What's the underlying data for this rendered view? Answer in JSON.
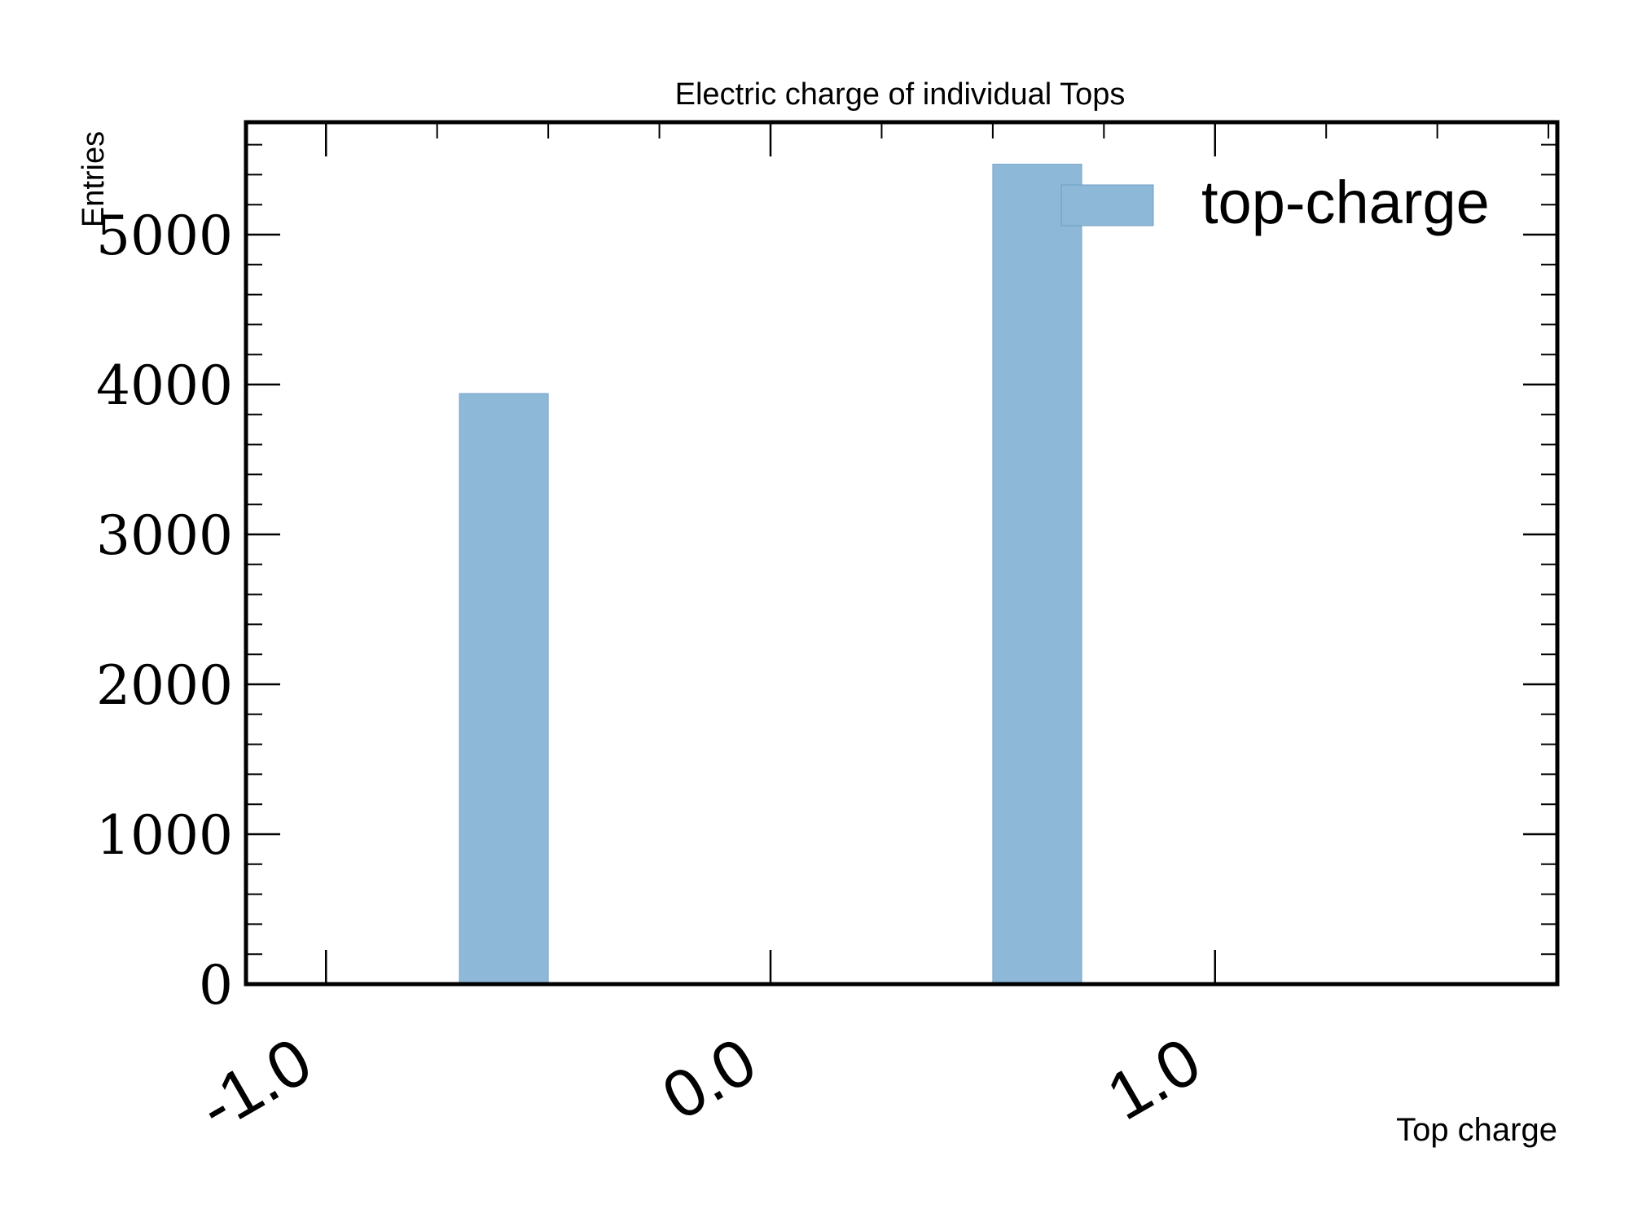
{
  "chart_data": {
    "type": "bar",
    "title": "Electric charge of individual Tops",
    "xlabel": "Top charge",
    "ylabel": "Entries",
    "xlim": [
      -1.18,
      1.77
    ],
    "ylim": [
      0,
      5750
    ],
    "xticks": [
      -1.0,
      0.0,
      1.0
    ],
    "xtick_labels": [
      "-1.0",
      "0.0",
      "1.0"
    ],
    "yticks": [
      0,
      1000,
      2000,
      3000,
      4000,
      5000
    ],
    "ytick_labels": [
      "0",
      "1000",
      "2000",
      "3000",
      "4000",
      "5000"
    ],
    "series": [
      {
        "name": "top-charge",
        "color": "#8db8d8",
        "bins": [
          {
            "x0": -0.7,
            "x1": -0.5,
            "value": 3940
          },
          {
            "x0": 0.5,
            "x1": 0.7,
            "value": 5470
          }
        ]
      }
    ],
    "legend": {
      "position": "top-right",
      "labels": [
        "top-charge"
      ]
    },
    "grid": false
  }
}
